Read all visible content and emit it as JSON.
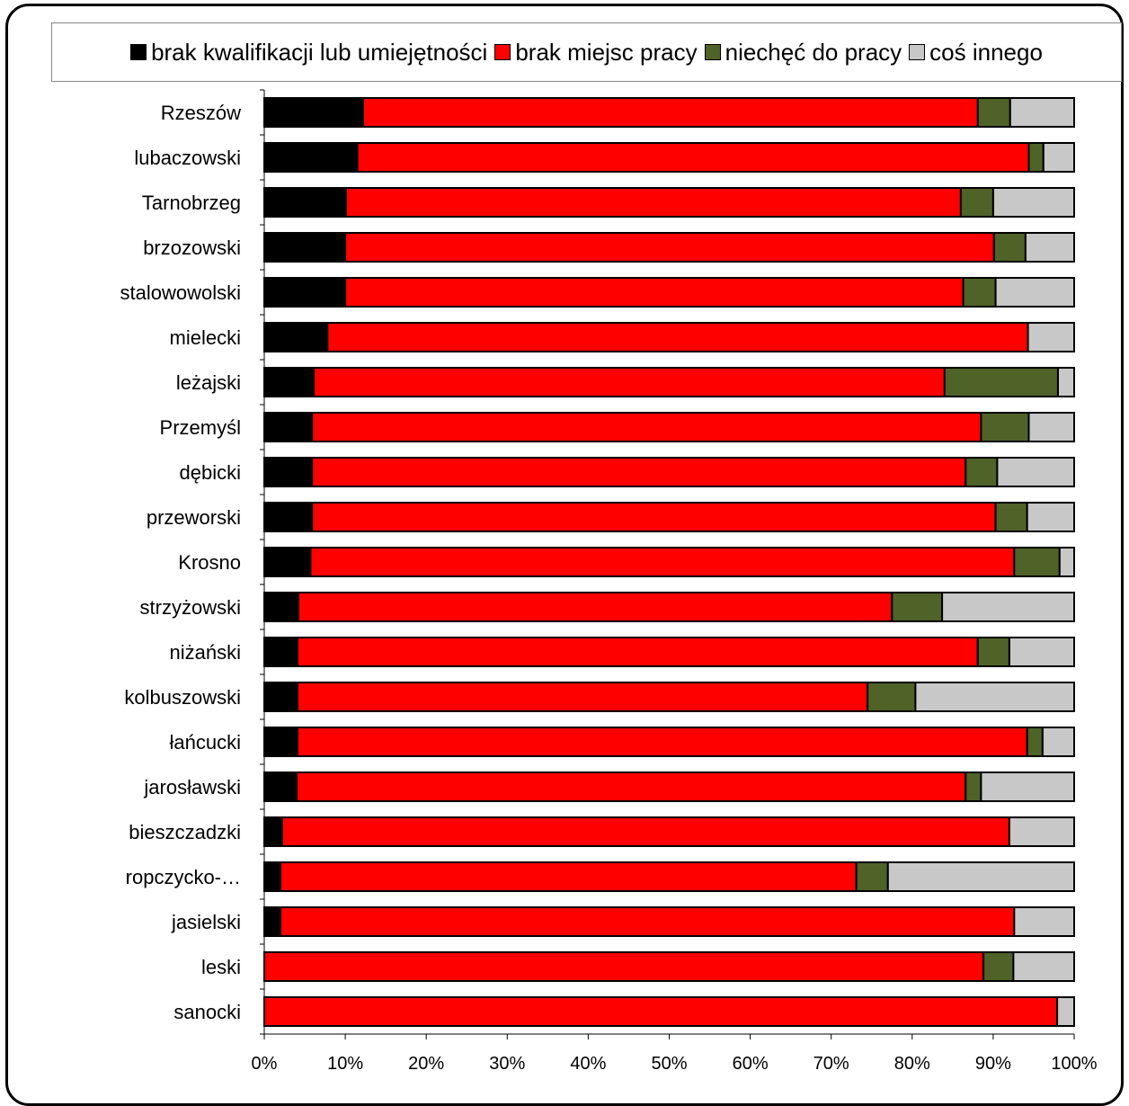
{
  "chart_data": {
    "type": "bar",
    "orientation": "horizontal",
    "stacked": "percent",
    "categories": [
      "Rzeszów",
      "lubaczowski",
      "Tarnobrzeg",
      "brzozowski",
      "stalowowolski",
      "mielecki",
      "leżajski",
      "Przemyśl",
      "dębicki",
      "przeworski",
      "Krosno",
      "strzyżowski",
      "niżański",
      "kolbuszowski",
      "łańcucki",
      "jarosławski",
      "bieszczadzki",
      "ropczycko-…",
      "jasielski",
      "leski",
      "sanocki"
    ],
    "series": [
      {
        "name": "brak kwalifikacji lub umiejętności",
        "color": "#000000",
        "values": [
          12.2,
          11.5,
          10.1,
          10.0,
          10.0,
          7.8,
          6.1,
          5.9,
          5.9,
          5.9,
          5.7,
          4.2,
          4.1,
          4.1,
          4.1,
          4.0,
          2.2,
          2.0,
          2.0,
          0.0,
          0.0
        ]
      },
      {
        "name": "brak miejsc pracy",
        "color": "#ff0000",
        "values": [
          75.9,
          82.9,
          75.9,
          80.1,
          76.3,
          86.5,
          77.9,
          82.6,
          80.7,
          84.4,
          86.9,
          73.3,
          84.0,
          70.4,
          90.1,
          82.6,
          89.8,
          71.1,
          90.6,
          88.8,
          97.9
        ]
      },
      {
        "name": "niechęć do pracy",
        "color": "#4f6228",
        "values": [
          4.0,
          1.8,
          4.0,
          3.9,
          4.0,
          0.0,
          14.0,
          5.9,
          3.9,
          3.9,
          5.6,
          6.2,
          3.9,
          5.9,
          1.9,
          1.9,
          0.0,
          3.9,
          0.0,
          3.7,
          0.0
        ]
      },
      {
        "name": "coś innego",
        "color": "#c8c8c8",
        "values": [
          7.9,
          3.8,
          10.0,
          6.0,
          9.7,
          5.7,
          2.0,
          5.6,
          9.5,
          5.8,
          1.8,
          16.3,
          8.0,
          19.6,
          3.9,
          11.5,
          8.0,
          23.0,
          7.4,
          7.5,
          2.1
        ]
      }
    ],
    "xlim": [
      0,
      100
    ],
    "x_ticks": [
      "0%",
      "10%",
      "20%",
      "30%",
      "40%",
      "50%",
      "60%",
      "70%",
      "80%",
      "90%",
      "100%"
    ],
    "legend_position": "top",
    "grid": false
  }
}
